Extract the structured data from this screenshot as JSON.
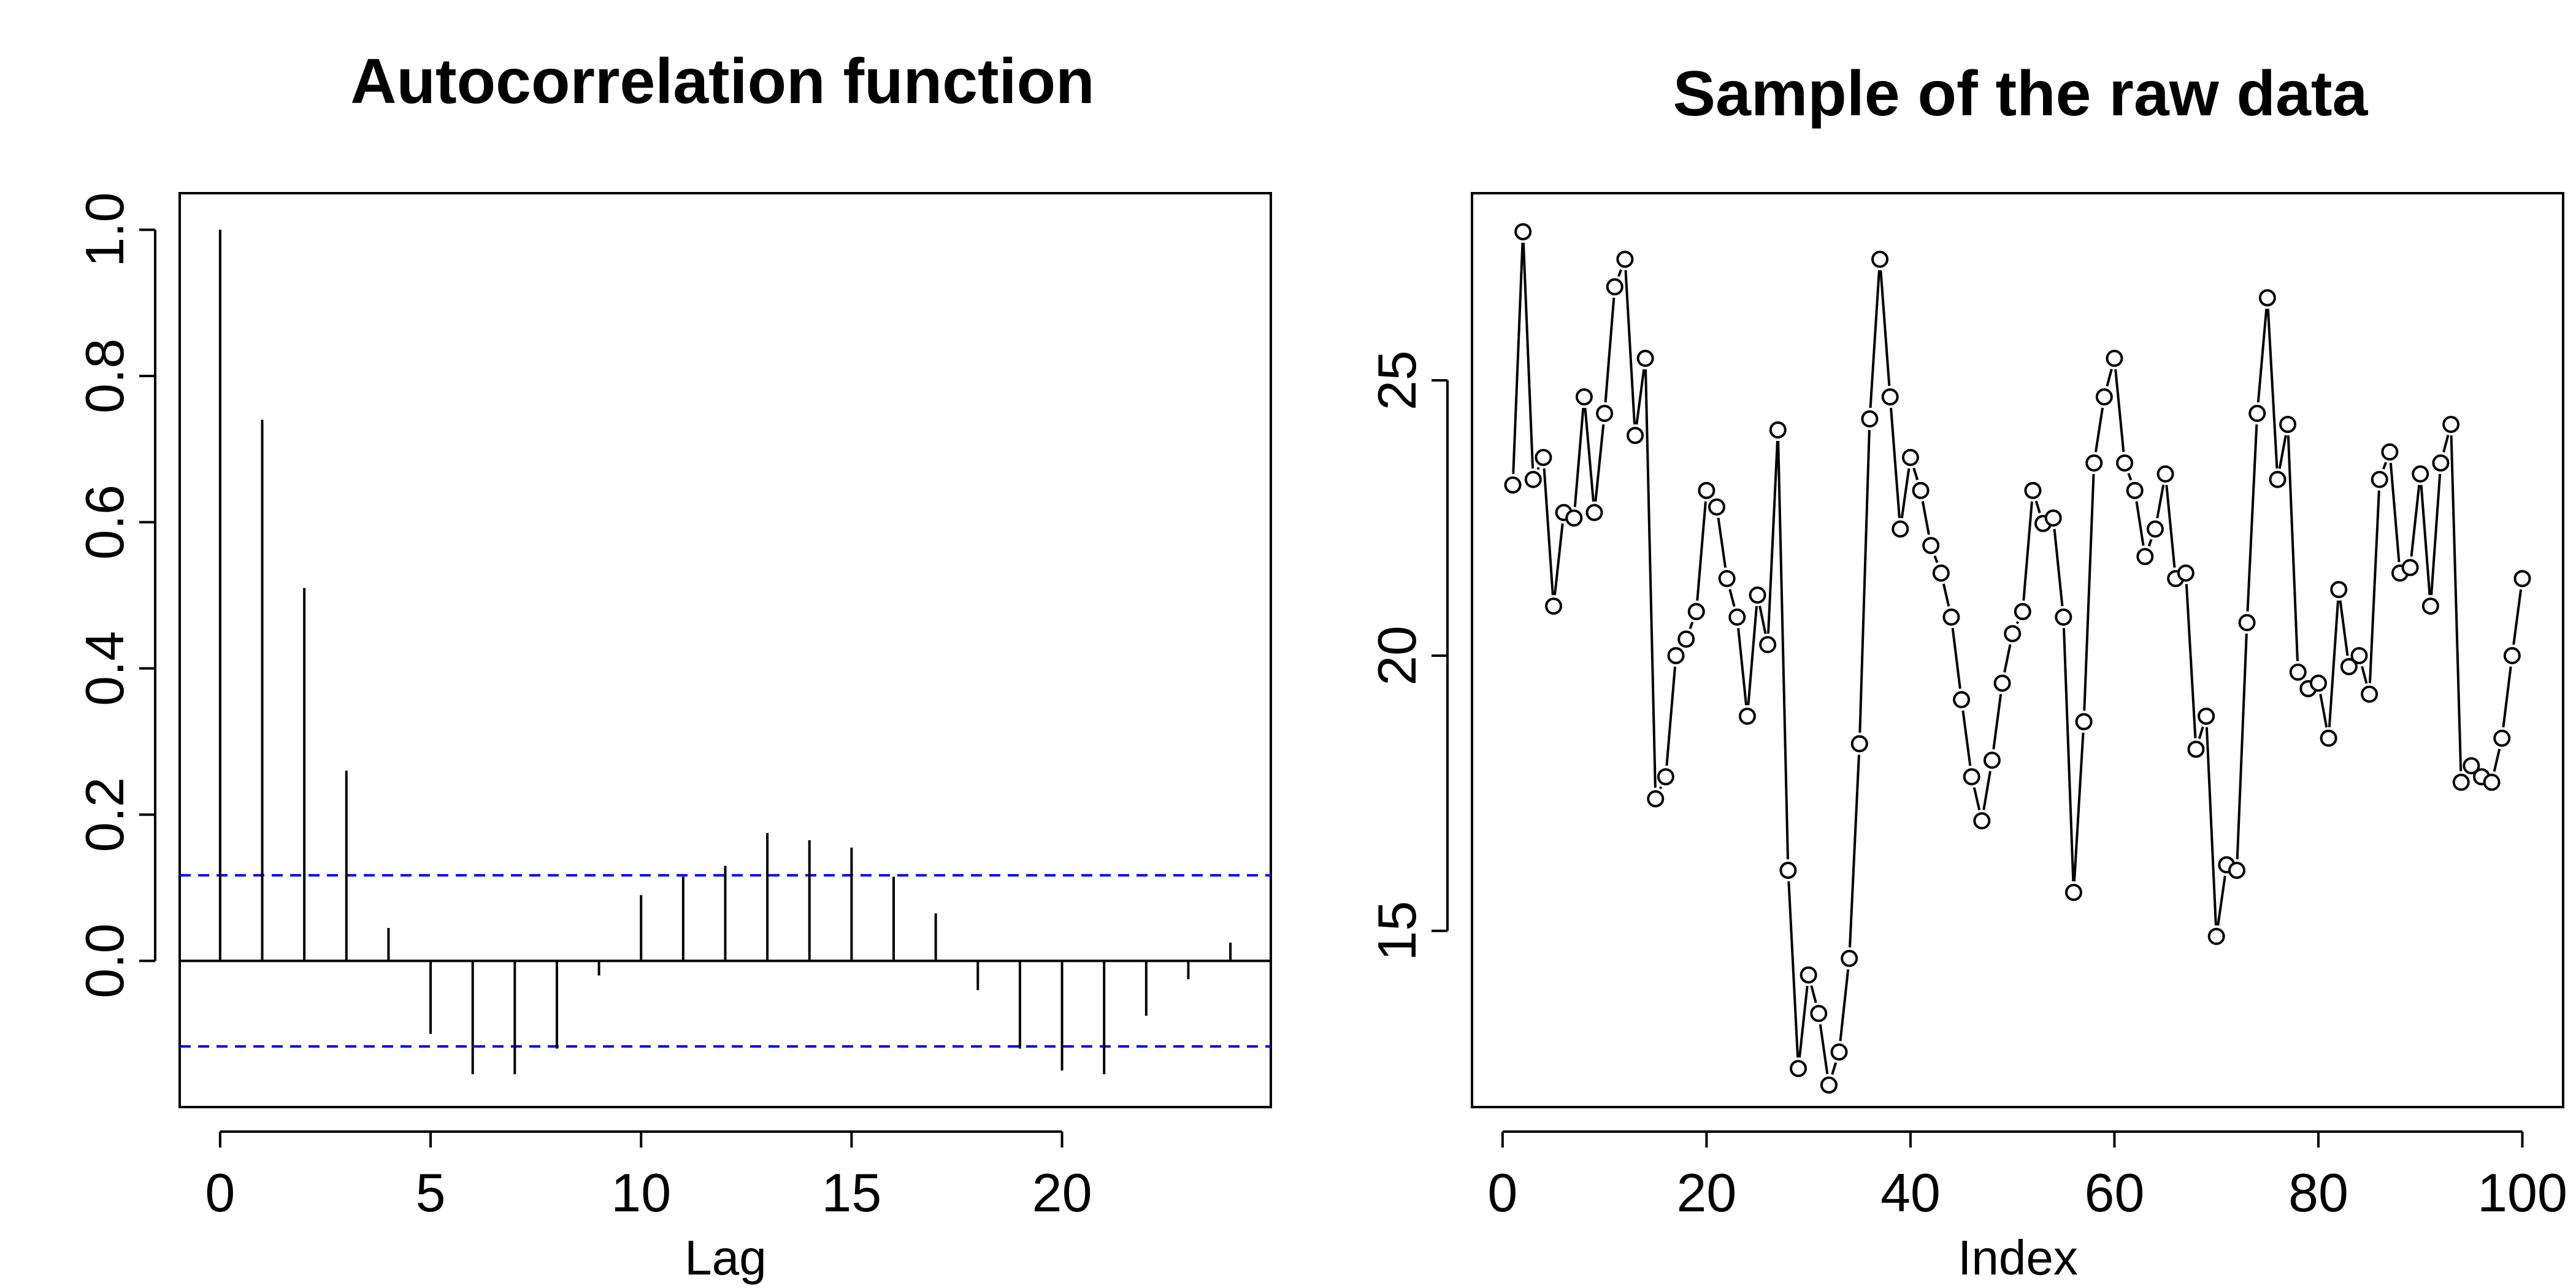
{
  "chart_data": [
    {
      "type": "bar",
      "title": "Autocorrelation function",
      "xlabel": "Lag",
      "ylabel": "",
      "xlim": [
        -0.96,
        24.96
      ],
      "ylim": [
        -0.2,
        1.05
      ],
      "xticks": [
        0,
        5,
        10,
        15,
        20
      ],
      "yticks": [
        0.0,
        0.2,
        0.4,
        0.6,
        0.8,
        1.0
      ],
      "ytick_labels": [
        "0.0",
        "0.2",
        "0.4",
        "0.6",
        "0.8",
        "1.0"
      ],
      "lags": [
        0,
        1,
        2,
        3,
        4,
        5,
        6,
        7,
        8,
        9,
        10,
        11,
        12,
        13,
        14,
        15,
        16,
        17,
        18,
        19,
        20,
        21,
        22,
        23,
        24
      ],
      "values": [
        1.0,
        0.74,
        0.51,
        0.26,
        0.045,
        -0.1,
        -0.155,
        -0.155,
        -0.12,
        -0.02,
        0.09,
        0.115,
        0.13,
        0.175,
        0.165,
        0.155,
        0.115,
        0.065,
        -0.04,
        -0.12,
        -0.15,
        -0.155,
        -0.075,
        -0.025,
        0.025
      ],
      "confidence_bound": 0.117,
      "confidence_color": "#0000ff",
      "bar_color": "#000000"
    },
    {
      "type": "line",
      "title": "Sample of the raw data",
      "xlabel": "Index",
      "ylabel": "",
      "xlim": [
        -3,
        104
      ],
      "ylim": [
        11.8,
        28.4
      ],
      "xticks": [
        0,
        20,
        40,
        60,
        80,
        100
      ],
      "yticks": [
        15,
        20,
        25
      ],
      "markers": "open-circle",
      "x": [
        1,
        2,
        3,
        4,
        5,
        6,
        7,
        8,
        9,
        10,
        11,
        12,
        13,
        14,
        15,
        16,
        17,
        18,
        19,
        20,
        21,
        22,
        23,
        24,
        25,
        26,
        27,
        28,
        29,
        30,
        31,
        32,
        33,
        34,
        35,
        36,
        37,
        38,
        39,
        40,
        41,
        42,
        43,
        44,
        45,
        46,
        47,
        48,
        49,
        50,
        51,
        52,
        53,
        54,
        55,
        56,
        57,
        58,
        59,
        60,
        61,
        62,
        63,
        64,
        65,
        66,
        67,
        68,
        69,
        70,
        71,
        72,
        73,
        74,
        75,
        76,
        77,
        78,
        79,
        80,
        81,
        82,
        83,
        84,
        85,
        86,
        87,
        88,
        89,
        90,
        91,
        92,
        93,
        94,
        95,
        96,
        97,
        98,
        99,
        100
      ],
      "values": [
        23.1,
        27.7,
        23.2,
        23.6,
        20.9,
        22.6,
        22.5,
        24.7,
        22.6,
        24.4,
        26.7,
        27.2,
        24.0,
        25.4,
        17.4,
        17.8,
        20.0,
        20.3,
        20.8,
        23.0,
        22.7,
        21.4,
        20.7,
        18.9,
        21.1,
        20.2,
        24.1,
        16.1,
        12.5,
        14.2,
        13.5,
        12.2,
        12.8,
        14.5,
        18.4,
        24.3,
        27.2,
        24.7,
        22.3,
        23.6,
        23.0,
        22.0,
        21.5,
        20.7,
        19.2,
        17.8,
        17.0,
        18.1,
        19.5,
        20.4,
        20.8,
        23.0,
        22.4,
        22.5,
        20.7,
        15.7,
        18.8,
        23.5,
        24.7,
        25.4,
        23.5,
        23.0,
        21.8,
        22.3,
        23.3,
        21.4,
        21.5,
        18.3,
        18.9,
        14.9,
        16.2,
        16.1,
        20.6,
        24.4,
        26.5,
        23.2,
        24.2,
        19.7,
        19.4,
        19.5,
        18.5,
        21.2,
        19.8,
        20.0,
        19.3,
        23.2,
        23.7,
        21.5,
        21.6,
        23.3,
        20.9,
        23.5,
        24.2,
        17.7,
        18.0,
        17.8,
        17.7,
        18.5,
        20.0,
        21.4
      ]
    }
  ]
}
